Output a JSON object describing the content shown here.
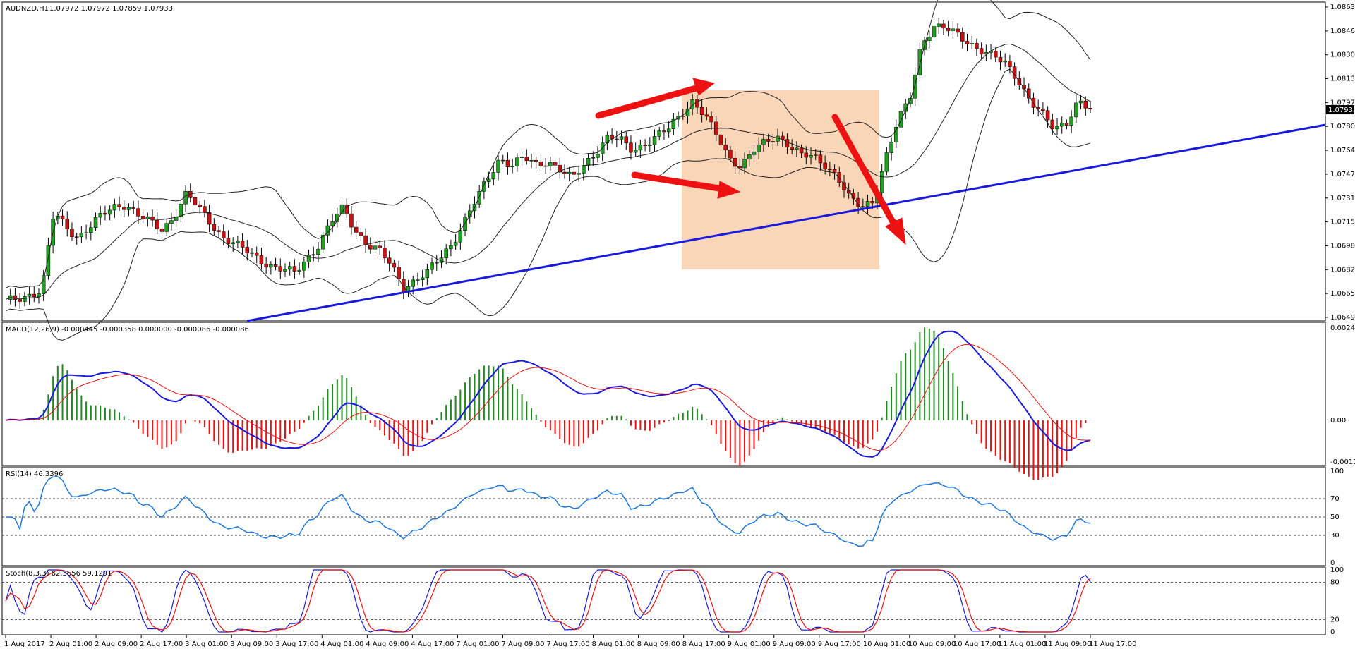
{
  "window": {
    "symbol_label": "AUDNZD,H1",
    "ohlc_label": "1.07972 1.07972 1.07859 1.07933"
  },
  "price_axis": {
    "min": 1.0649,
    "max": 1.0865,
    "ticks": [
      "1.08630",
      "1.08465",
      "1.08300",
      "1.08135",
      "1.07970",
      "1.07805",
      "1.07640",
      "1.07475",
      "1.07310",
      "1.07150",
      "1.06985",
      "1.06820",
      "1.06655",
      "1.06490"
    ],
    "current_price": "1.07933"
  },
  "time_axis": {
    "labels": [
      "1 Aug 2017",
      "2 Aug 01:00",
      "2 Aug 09:00",
      "2 Aug 17:00",
      "3 Aug 01:00",
      "3 Aug 09:00",
      "3 Aug 17:00",
      "4 Aug 01:00",
      "4 Aug 09:00",
      "4 Aug 17:00",
      "7 Aug 01:00",
      "7 Aug 09:00",
      "7 Aug 17:00",
      "8 Aug 01:00",
      "8 Aug 09:00",
      "8 Aug 17:00",
      "9 Aug 01:00",
      "9 Aug 09:00",
      "9 Aug 17:00",
      "10 Aug 01:00",
      "10 Aug 09:00",
      "10 Aug 17:00",
      "11 Aug 01:00",
      "11 Aug 09:00",
      "11 Aug 17:00"
    ]
  },
  "indicators": {
    "macd": {
      "label": "MACD(12,26,9) -0.000445 -0.000358 0.000000 -0.000086 -0.000086",
      "ticks": [
        "0.002491",
        "0.00",
        "-0.001128"
      ]
    },
    "rsi": {
      "label": "RSI(14) 46.3396",
      "ticks": [
        "100",
        "70",
        "50",
        "30",
        "0"
      ]
    },
    "stoch": {
      "label": "Stoch(8,3,3) 62.3656 59.1291",
      "ticks": [
        "100",
        "80",
        "20",
        "0"
      ]
    }
  },
  "colors": {
    "bull": "#22a022",
    "bear": "#cc1111",
    "trendline": "#1a1adc",
    "arrows": "#ee1111",
    "highlight": "#fad2b0",
    "macd_line": "#1a1adc",
    "signal_line": "#ee1111",
    "rsi_line": "#1e78dc",
    "stoch_main": "#1a1adc",
    "stoch_signal": "#ee1111"
  },
  "chart_data": {
    "type": "line",
    "subtype": "candlestick",
    "interval": "H1",
    "y_range": [
      1.0649,
      1.0865
    ],
    "price_anchors": [
      1.066,
      1.0662,
      1.0665,
      1.0668,
      1.0722,
      1.0712,
      1.0705,
      1.0712,
      1.072,
      1.0726,
      1.0728,
      1.072,
      1.0715,
      1.071,
      1.072,
      1.0735,
      1.0725,
      1.0715,
      1.0705,
      1.07,
      1.0695,
      1.069,
      1.0685,
      1.0682,
      1.068,
      1.069,
      1.07,
      1.0715,
      1.0725,
      1.071,
      1.07,
      1.0695,
      1.0685,
      1.067,
      1.0675,
      1.068,
      1.069,
      1.07,
      1.0715,
      1.073,
      1.0745,
      1.076,
      1.0755,
      1.076,
      1.0755,
      1.0758,
      1.0752,
      1.0745,
      1.0755,
      1.0765,
      1.0775,
      1.0772,
      1.0765,
      1.077,
      1.0775,
      1.078,
      1.079,
      1.08,
      1.079,
      1.0775,
      1.076,
      1.0755,
      1.0765,
      1.077,
      1.0775,
      1.077,
      1.0762,
      1.076,
      1.0755,
      1.0748,
      1.0732,
      1.0725,
      1.073,
      1.076,
      1.0785,
      1.08,
      1.084,
      1.0852,
      1.085,
      1.0845,
      1.084,
      1.0835,
      1.083,
      1.0825,
      1.0815,
      1.08,
      1.079,
      1.078,
      1.0785,
      1.08,
      1.0793
    ],
    "trendline": {
      "color": "blue",
      "p1": [
        0.18,
        1.0649
      ],
      "p2": [
        1.0,
        1.079
      ]
    },
    "annotations": {
      "shaded_region_price": [
        1.0685,
        1.0812
      ],
      "arrows": [
        "up-right",
        "down-right",
        "down-right"
      ]
    },
    "macd": {
      "range": [
        -0.001128,
        0.002491
      ]
    },
    "rsi": {
      "range": [
        0,
        100
      ],
      "levels": [
        70,
        50,
        30
      ]
    },
    "stochastic": {
      "range": [
        0,
        100
      ],
      "levels": [
        80,
        20
      ]
    }
  }
}
